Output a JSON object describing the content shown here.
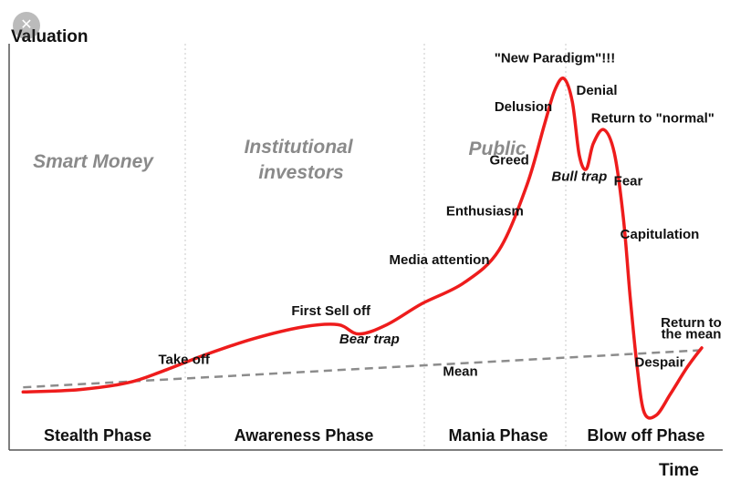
{
  "chart_data": {
    "type": "line",
    "ylabel": "Valuation",
    "xlabel": "Time",
    "phases_top": [
      "Smart Money",
      "Institutional investors",
      "Public"
    ],
    "phases_bottom": [
      "Stealth Phase",
      "Awareness Phase",
      "Mania Phase",
      "Blow off Phase"
    ],
    "series": [
      {
        "name": "",
        "color": "#ee1c1c",
        "points": [
          [
            0,
            0.05
          ],
          [
            8,
            0.06
          ],
          [
            15,
            0.09
          ],
          [
            20,
            0.14
          ],
          [
            26,
            0.21
          ],
          [
            33,
            0.28
          ],
          [
            40,
            0.33
          ],
          [
            45,
            0.34
          ],
          [
            48,
            0.3
          ],
          [
            52,
            0.34
          ],
          [
            57,
            0.43
          ],
          [
            63,
            0.52
          ],
          [
            68,
            0.66
          ],
          [
            72,
            0.94
          ],
          [
            74.5,
            1.2
          ],
          [
            76,
            1.35
          ],
          [
            77.3,
            1.4
          ],
          [
            78.5,
            1.3
          ],
          [
            79.5,
            1.07
          ],
          [
            80.5,
            1.01
          ],
          [
            81.5,
            1.12
          ],
          [
            83,
            1.18
          ],
          [
            84.5,
            1.08
          ],
          [
            85.8,
            0.8
          ],
          [
            86.8,
            0.45
          ],
          [
            87.8,
            0.15
          ],
          [
            88.8,
            -0.04
          ],
          [
            90.5,
            -0.05
          ],
          [
            92.5,
            0.04
          ],
          [
            95,
            0.16
          ],
          [
            97,
            0.24
          ]
        ]
      }
    ],
    "mean_line": {
      "name": "Mean",
      "color": "#8c8c8c",
      "points": [
        [
          0,
          0.07
        ],
        [
          97,
          0.23
        ]
      ]
    },
    "annotations": [
      {
        "text": "Take off",
        "x": 23,
        "y": 0.17,
        "style": "normal"
      },
      {
        "text": "First Sell off",
        "x": 44,
        "y": 0.38,
        "style": "normal"
      },
      {
        "text": "Bear trap",
        "x": 49.5,
        "y": 0.26,
        "style": "italic"
      },
      {
        "text": "Media attention",
        "x": 59.5,
        "y": 0.6,
        "style": "normal"
      },
      {
        "text": "Enthusiasm",
        "x": 66,
        "y": 0.81,
        "style": "normal"
      },
      {
        "text": "Greed",
        "x": 69.5,
        "y": 1.03,
        "style": "normal"
      },
      {
        "text": "Delusion",
        "x": 71.5,
        "y": 1.26,
        "style": "normal"
      },
      {
        "text": "\"New Paradigm\"!!!",
        "x": 76,
        "y": 1.47,
        "style": "normal"
      },
      {
        "text": "Denial",
        "x": 82,
        "y": 1.33,
        "style": "normal"
      },
      {
        "text": "Return to \"normal\"",
        "x": 90,
        "y": 1.21,
        "style": "normal"
      },
      {
        "text": "Bull trap",
        "x": 79.5,
        "y": 0.96,
        "style": "italic"
      },
      {
        "text": "Fear",
        "x": 86.5,
        "y": 0.94,
        "style": "normal"
      },
      {
        "text": "Capitulation",
        "x": 91,
        "y": 0.71,
        "style": "normal"
      },
      {
        "text": "Return to",
        "x": 95.5,
        "y": 0.33,
        "style": "normal"
      },
      {
        "text": "the mean",
        "x": 95.5,
        "y": 0.28,
        "style": "normal"
      },
      {
        "text": "Despair",
        "x": 91,
        "y": 0.16,
        "style": "normal"
      },
      {
        "text": "Mean",
        "x": 62.5,
        "y": 0.12,
        "style": "normal"
      }
    ],
    "xlim": [
      -2,
      100
    ],
    "ylim": [
      -0.2,
      1.55
    ],
    "grid": "vertical dotted phase dividers"
  },
  "close_icon": "close-icon"
}
